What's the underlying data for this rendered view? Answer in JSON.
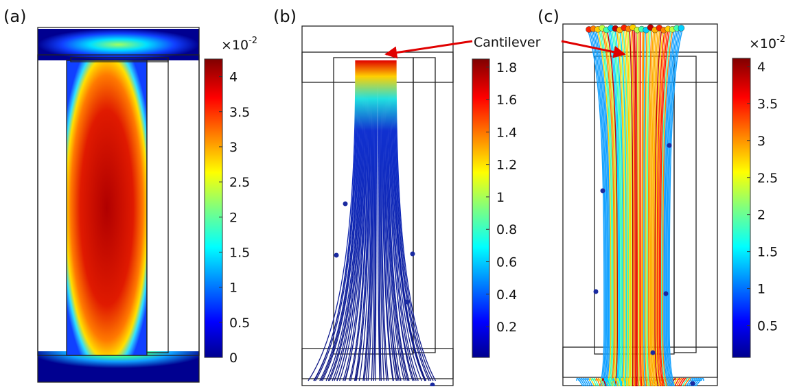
{
  "panels": [
    {
      "label": "(a)",
      "colorbar": {
        "multiplier": "×10",
        "exponent": "-2",
        "lim": [
          0,
          4.25
        ],
        "ticks": [
          0,
          0.5,
          1,
          1.5,
          2,
          2.5,
          3,
          3.5,
          4
        ]
      }
    },
    {
      "label": "(b)",
      "colorbar": {
        "lim": [
          0.01,
          1.85
        ],
        "ticks": [
          0.2,
          0.4,
          0.6,
          0.8,
          1,
          1.2,
          1.4,
          1.6,
          1.8
        ]
      }
    },
    {
      "label": "(c)",
      "colorbar": {
        "multiplier": "×10",
        "exponent": "-2",
        "lim": [
          0.07,
          4.11
        ],
        "ticks": [
          0.5,
          1,
          1.5,
          2,
          2.5,
          3,
          3.5,
          4
        ]
      }
    }
  ],
  "annotation": "Cantilever"
}
